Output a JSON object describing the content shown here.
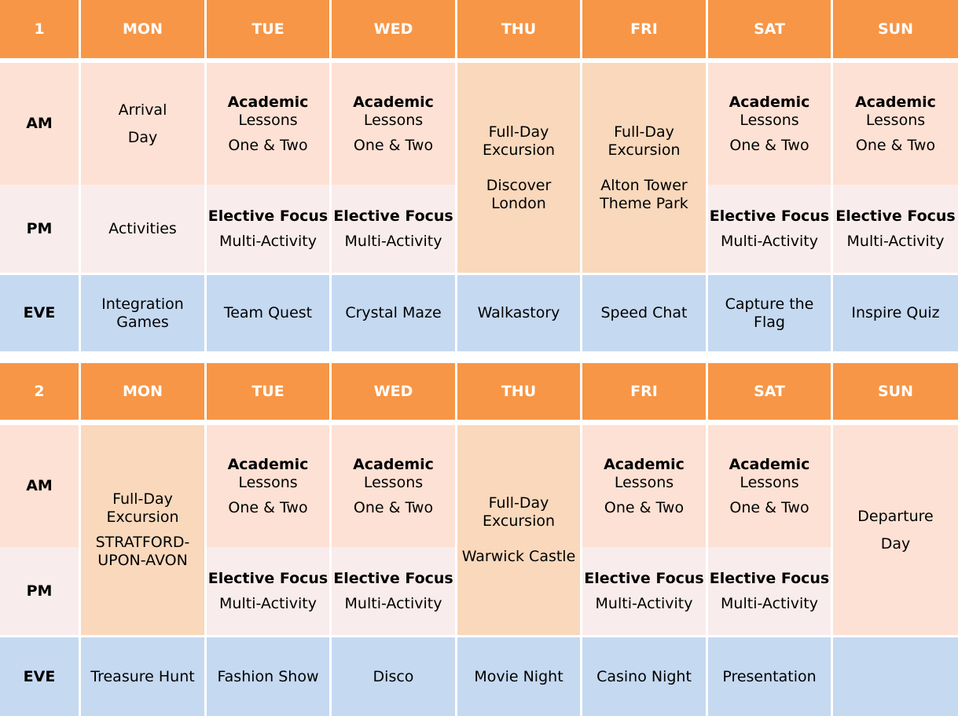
{
  "days": [
    "MON",
    "TUE",
    "WED",
    "THU",
    "FRI",
    "SAT",
    "SUN"
  ],
  "row_labels": {
    "am": "AM",
    "pm": "PM",
    "eve": "EVE"
  },
  "week1": {
    "number": "1",
    "arrival": [
      "Arrival",
      "Day"
    ],
    "mon_pm": "Activities",
    "academic": {
      "title": "Academic",
      "line1": "Lessons",
      "line2": "One & Two"
    },
    "elective": {
      "title": "Elective Focus",
      "line2": "Multi-Activity"
    },
    "thu_excursion": {
      "line1": "Full-Day",
      "line2": "Excursion",
      "place1": "Discover",
      "place2": "London"
    },
    "fri_excursion": {
      "line1": "Full-Day",
      "line2": "Excursion",
      "place1": "Alton Tower",
      "place2": "Theme Park"
    },
    "evening": {
      "mon": [
        "Integration",
        "Games"
      ],
      "tue": "Team Quest",
      "wed": "Crystal Maze",
      "thu": "Walkastory",
      "fri": "Speed Chat",
      "sat": [
        "Capture the",
        "Flag"
      ],
      "sun": "Inspire Quiz"
    }
  },
  "week2": {
    "number": "2",
    "mon_excursion": {
      "line1": "Full-Day",
      "line2": "Excursion",
      "place1": "STRATFORD-",
      "place2": "UPON-AVON"
    },
    "thu_excursion": {
      "line1": "Full-Day",
      "line2": "Excursion",
      "place1": "Warwick Castle"
    },
    "departure": [
      "Departure",
      "Day"
    ],
    "academic": {
      "title": "Academic",
      "line1": "Lessons",
      "line2": "One & Two"
    },
    "elective": {
      "title": "Elective Focus",
      "line2": "Multi-Activity"
    },
    "evening": {
      "mon": "Treasure Hunt",
      "tue": "Fashion Show",
      "wed": "Disco",
      "thu": "Movie Night",
      "fri": "Casino Night",
      "sat": "Presentation",
      "sun": ""
    }
  },
  "colors": {
    "header": "#F79646",
    "am": "#FDE1D4",
    "pm": "#F9ECEC",
    "excursion": "#F9D8BC",
    "evening": "#C5D9F1"
  }
}
